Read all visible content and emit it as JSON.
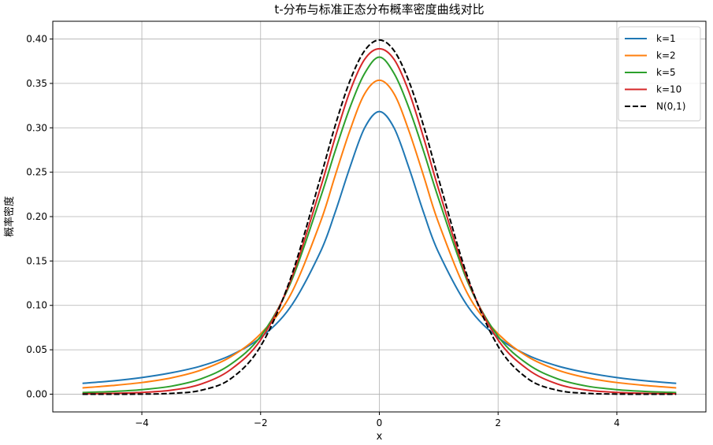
{
  "chart_data": {
    "type": "line",
    "title": "t-分布与标准正态分布概率密度曲线对比",
    "xlabel": "x",
    "ylabel": "概率密度",
    "xlim": [
      -5.5,
      5.5
    ],
    "ylim": [
      -0.02,
      0.42
    ],
    "grid": true,
    "legend_position": "top-right",
    "x_ticks": [
      -4,
      -2,
      0,
      2,
      4
    ],
    "x_tick_labels": [
      "−4",
      "−2",
      "0",
      "2",
      "4"
    ],
    "y_ticks": [
      0.0,
      0.05,
      0.1,
      0.15,
      0.2,
      0.25,
      0.3,
      0.35,
      0.4
    ],
    "y_tick_labels": [
      "0.00",
      "0.05",
      "0.10",
      "0.15",
      "0.20",
      "0.25",
      "0.30",
      "0.35",
      "0.40"
    ],
    "x": [
      -5,
      -4.5,
      -4,
      -3.5,
      -3,
      -2.5,
      -2,
      -1.5,
      -1,
      -0.75,
      -0.5,
      -0.25,
      0,
      0.25,
      0.5,
      0.75,
      1,
      1.5,
      2,
      2.5,
      3,
      3.5,
      4,
      4.5,
      5
    ],
    "series": [
      {
        "name": "k=1",
        "color": "#1f77b4",
        "dash": false,
        "values": [
          0.0122,
          0.0149,
          0.0187,
          0.0241,
          0.0318,
          0.0439,
          0.0637,
          0.0979,
          0.1592,
          0.2037,
          0.2546,
          0.2996,
          0.3183,
          0.2996,
          0.2546,
          0.2037,
          0.1592,
          0.0979,
          0.0637,
          0.0439,
          0.0318,
          0.0241,
          0.0187,
          0.0149,
          0.0122
        ]
      },
      {
        "name": "k=2",
        "color": "#ff7f0e",
        "dash": false,
        "values": [
          0.0071,
          0.0097,
          0.0131,
          0.0184,
          0.0272,
          0.0422,
          0.068,
          0.1114,
          0.1925,
          0.2449,
          0.2962,
          0.3381,
          0.3536,
          0.3381,
          0.2962,
          0.2449,
          0.1925,
          0.1114,
          0.068,
          0.0422,
          0.0272,
          0.0184,
          0.0131,
          0.0097,
          0.0071
        ]
      },
      {
        "name": "k=5",
        "color": "#2ca02c",
        "dash": false,
        "values": [
          0.0018,
          0.003,
          0.0051,
          0.009,
          0.0173,
          0.0338,
          0.0651,
          0.1245,
          0.2197,
          0.2727,
          0.322,
          0.361,
          0.3796,
          0.361,
          0.322,
          0.2727,
          0.2197,
          0.1245,
          0.0651,
          0.0338,
          0.0173,
          0.009,
          0.0051,
          0.003,
          0.0018
        ]
      },
      {
        "name": "k=10",
        "color": "#d62728",
        "dash": false,
        "values": [
          0.0004,
          0.0009,
          0.002,
          0.0045,
          0.0114,
          0.0279,
          0.0611,
          0.1269,
          0.2304,
          0.2878,
          0.3402,
          0.3769,
          0.3891,
          0.3769,
          0.3402,
          0.2878,
          0.2304,
          0.1269,
          0.0611,
          0.0279,
          0.0114,
          0.0045,
          0.002,
          0.0009,
          0.0004
        ]
      },
      {
        "name": "N(0,1)",
        "color": "#000000",
        "dash": true,
        "values": [
          0.0,
          0.0,
          0.0001,
          0.0009,
          0.0044,
          0.0175,
          0.054,
          0.1295,
          0.242,
          0.3011,
          0.3521,
          0.3867,
          0.3989,
          0.3867,
          0.3521,
          0.3011,
          0.242,
          0.1295,
          0.054,
          0.0175,
          0.0044,
          0.0009,
          0.0001,
          0.0,
          0.0
        ]
      }
    ]
  }
}
